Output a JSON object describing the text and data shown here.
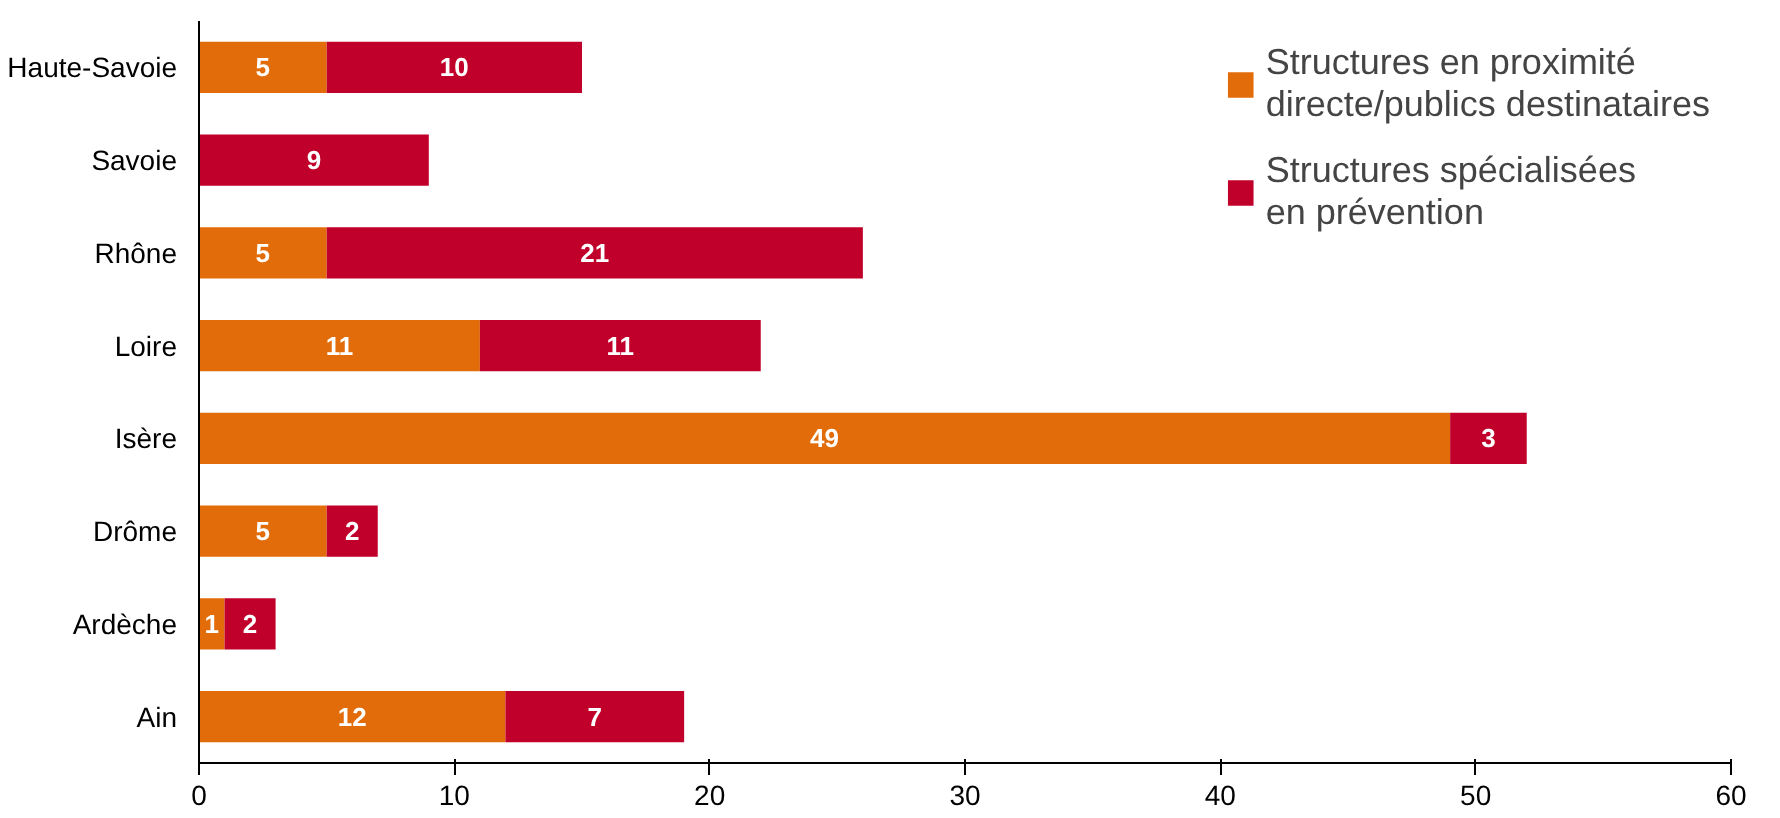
{
  "chart_data": {
    "type": "bar",
    "orientation": "horizontal",
    "stacked": true,
    "data_labels": true,
    "legend": "top right",
    "grid": false,
    "categories": [
      "Haute-Savoie",
      "Savoie",
      "Rhône",
      "Loire",
      "Isère",
      "Drôme",
      "Ardèche",
      "Ain"
    ],
    "series": [
      {
        "name": "Structures en proximité directe/publics destinataires",
        "color": "#e36c0a",
        "values": [
          5,
          null,
          5,
          11,
          49,
          5,
          1,
          12
        ]
      },
      {
        "name": "Structures spécialisées en prévention",
        "color": "#c0002a",
        "values": [
          10,
          9,
          21,
          11,
          3,
          2,
          2,
          7
        ]
      }
    ],
    "xlim": [
      0,
      60
    ],
    "xticks": [
      0,
      10,
      20,
      30,
      40,
      50,
      60
    ]
  }
}
